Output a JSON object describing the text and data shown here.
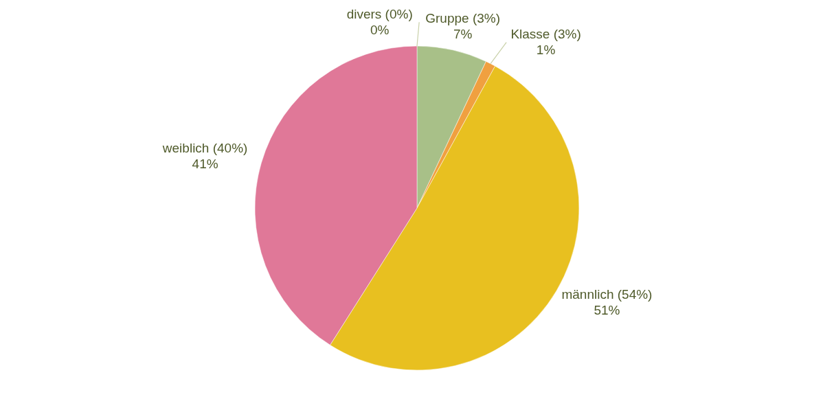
{
  "chart_data": {
    "type": "pie",
    "categories": [
      "divers (0%)",
      "Gruppe (3%)",
      "Klasse (3%)",
      "männlich (54%)",
      "weiblich (40%)"
    ],
    "values": [
      0,
      7,
      1,
      51,
      41
    ],
    "value_labels": [
      "0%",
      "7%",
      "1%",
      "51%",
      "41%"
    ],
    "colors": [
      "#b8c498",
      "#a8c088",
      "#f0a040",
      "#e8c020",
      "#e07898"
    ]
  }
}
